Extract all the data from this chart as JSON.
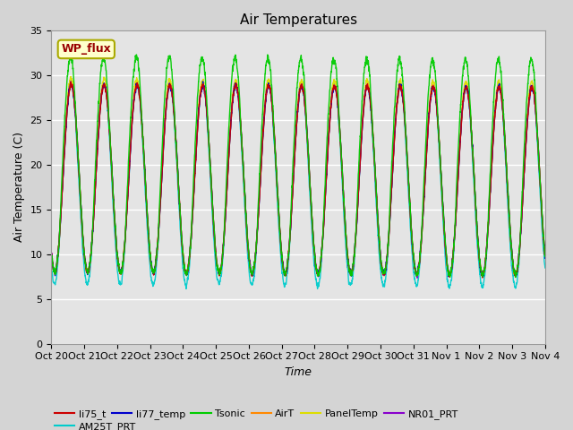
{
  "title": "Air Temperatures",
  "xlabel": "Time",
  "ylabel": "Air Temperature (C)",
  "ylim": [
    0,
    35
  ],
  "yticks": [
    0,
    5,
    10,
    15,
    20,
    25,
    30,
    35
  ],
  "n_days": 15,
  "x_tick_labels": [
    "Oct 20",
    "Oct 21",
    "Oct 22",
    "Oct 23",
    "Oct 24",
    "Oct 25",
    "Oct 26",
    "Oct 27",
    "Oct 28",
    "Oct 29",
    "Oct 30",
    "Oct 31",
    "Nov 1",
    "Nov 2",
    "Nov 3",
    "Nov 4"
  ],
  "legend_entries": [
    {
      "label": "li75_t",
      "color": "#cc0000"
    },
    {
      "label": "li77_temp",
      "color": "#0000cc"
    },
    {
      "label": "Tsonic",
      "color": "#00cc00"
    },
    {
      "label": "AirT",
      "color": "#ff8800"
    },
    {
      "label": "PanelTemp",
      "color": "#dddd00"
    },
    {
      "label": "NR01_PRT",
      "color": "#8800cc"
    },
    {
      "label": "AM25T_PRT",
      "color": "#00cccc"
    }
  ],
  "annotation_text": "WP_flux",
  "background_color": "#d4d4d4",
  "plot_bg_color": "#e4e4e4",
  "title_fontsize": 11,
  "axis_fontsize": 9,
  "tick_fontsize": 8
}
